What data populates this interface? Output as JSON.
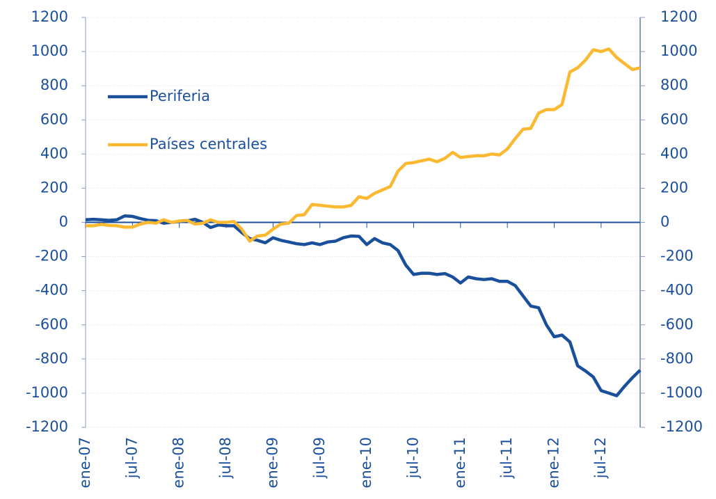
{
  "chart_data": {
    "type": "line",
    "categories": [
      "ene-07",
      null,
      null,
      null,
      null,
      null,
      "jul-07",
      null,
      null,
      null,
      null,
      null,
      "ene-08",
      null,
      null,
      null,
      null,
      null,
      "jul-08",
      null,
      null,
      null,
      null,
      null,
      "ene-09",
      null,
      null,
      null,
      null,
      null,
      "jul-09",
      null,
      null,
      null,
      null,
      null,
      "ene-10",
      null,
      null,
      null,
      null,
      null,
      "jul-10",
      null,
      null,
      null,
      null,
      null,
      "ene-11",
      null,
      null,
      null,
      null,
      null,
      "jul-11",
      null,
      null,
      null,
      null,
      null,
      "ene-12",
      null,
      null,
      null,
      null,
      null,
      "jul-12",
      null,
      null,
      null,
      null,
      null
    ],
    "series": [
      {
        "name": "Periferia",
        "color": "#1a4f9c",
        "values": [
          15,
          18,
          15,
          12,
          15,
          38,
          35,
          22,
          12,
          10,
          -5,
          0,
          5,
          8,
          18,
          0,
          -30,
          -15,
          -20,
          -20,
          -60,
          -95,
          -105,
          -120,
          -90,
          -105,
          -115,
          -125,
          -130,
          -120,
          -130,
          -115,
          -110,
          -90,
          -80,
          -82,
          -130,
          -95,
          -120,
          -130,
          -165,
          -250,
          -305,
          -298,
          -298,
          -305,
          -300,
          -320,
          -355,
          -320,
          -330,
          -335,
          -330,
          -345,
          -345,
          -370,
          -430,
          -490,
          -500,
          -600,
          -670,
          -660,
          -700,
          -840,
          -870,
          -905,
          -985,
          -1000,
          -1015,
          -960,
          -910,
          -865
        ]
      },
      {
        "name": "Países centrales",
        "color": "#fbb931",
        "axis": "y2",
        "values": [
          -20,
          -20,
          -12,
          -18,
          -20,
          -28,
          -28,
          -10,
          0,
          -5,
          15,
          0,
          8,
          12,
          -10,
          -5,
          15,
          0,
          0,
          5,
          -40,
          -110,
          -80,
          -75,
          -40,
          -10,
          -5,
          40,
          45,
          105,
          100,
          95,
          90,
          90,
          100,
          150,
          140,
          170,
          190,
          210,
          300,
          345,
          350,
          360,
          370,
          355,
          375,
          410,
          380,
          385,
          390,
          390,
          400,
          395,
          430,
          490,
          545,
          550,
          640,
          660,
          660,
          690,
          880,
          905,
          950,
          1010,
          1000,
          1015,
          965,
          930,
          895,
          905
        ]
      }
    ],
    "ylim": [
      -1200,
      1200
    ],
    "yticks": [
      -1200,
      -1000,
      -800,
      -600,
      -400,
      -200,
      0,
      200,
      400,
      600,
      800,
      1000,
      1200
    ],
    "y2lim": [
      -1200,
      1200
    ],
    "y2ticks": [
      -1200,
      -1000,
      -800,
      -600,
      -400,
      -200,
      0,
      200,
      400,
      600,
      800,
      1000,
      1200
    ],
    "grid": true,
    "legend": "upper left"
  }
}
